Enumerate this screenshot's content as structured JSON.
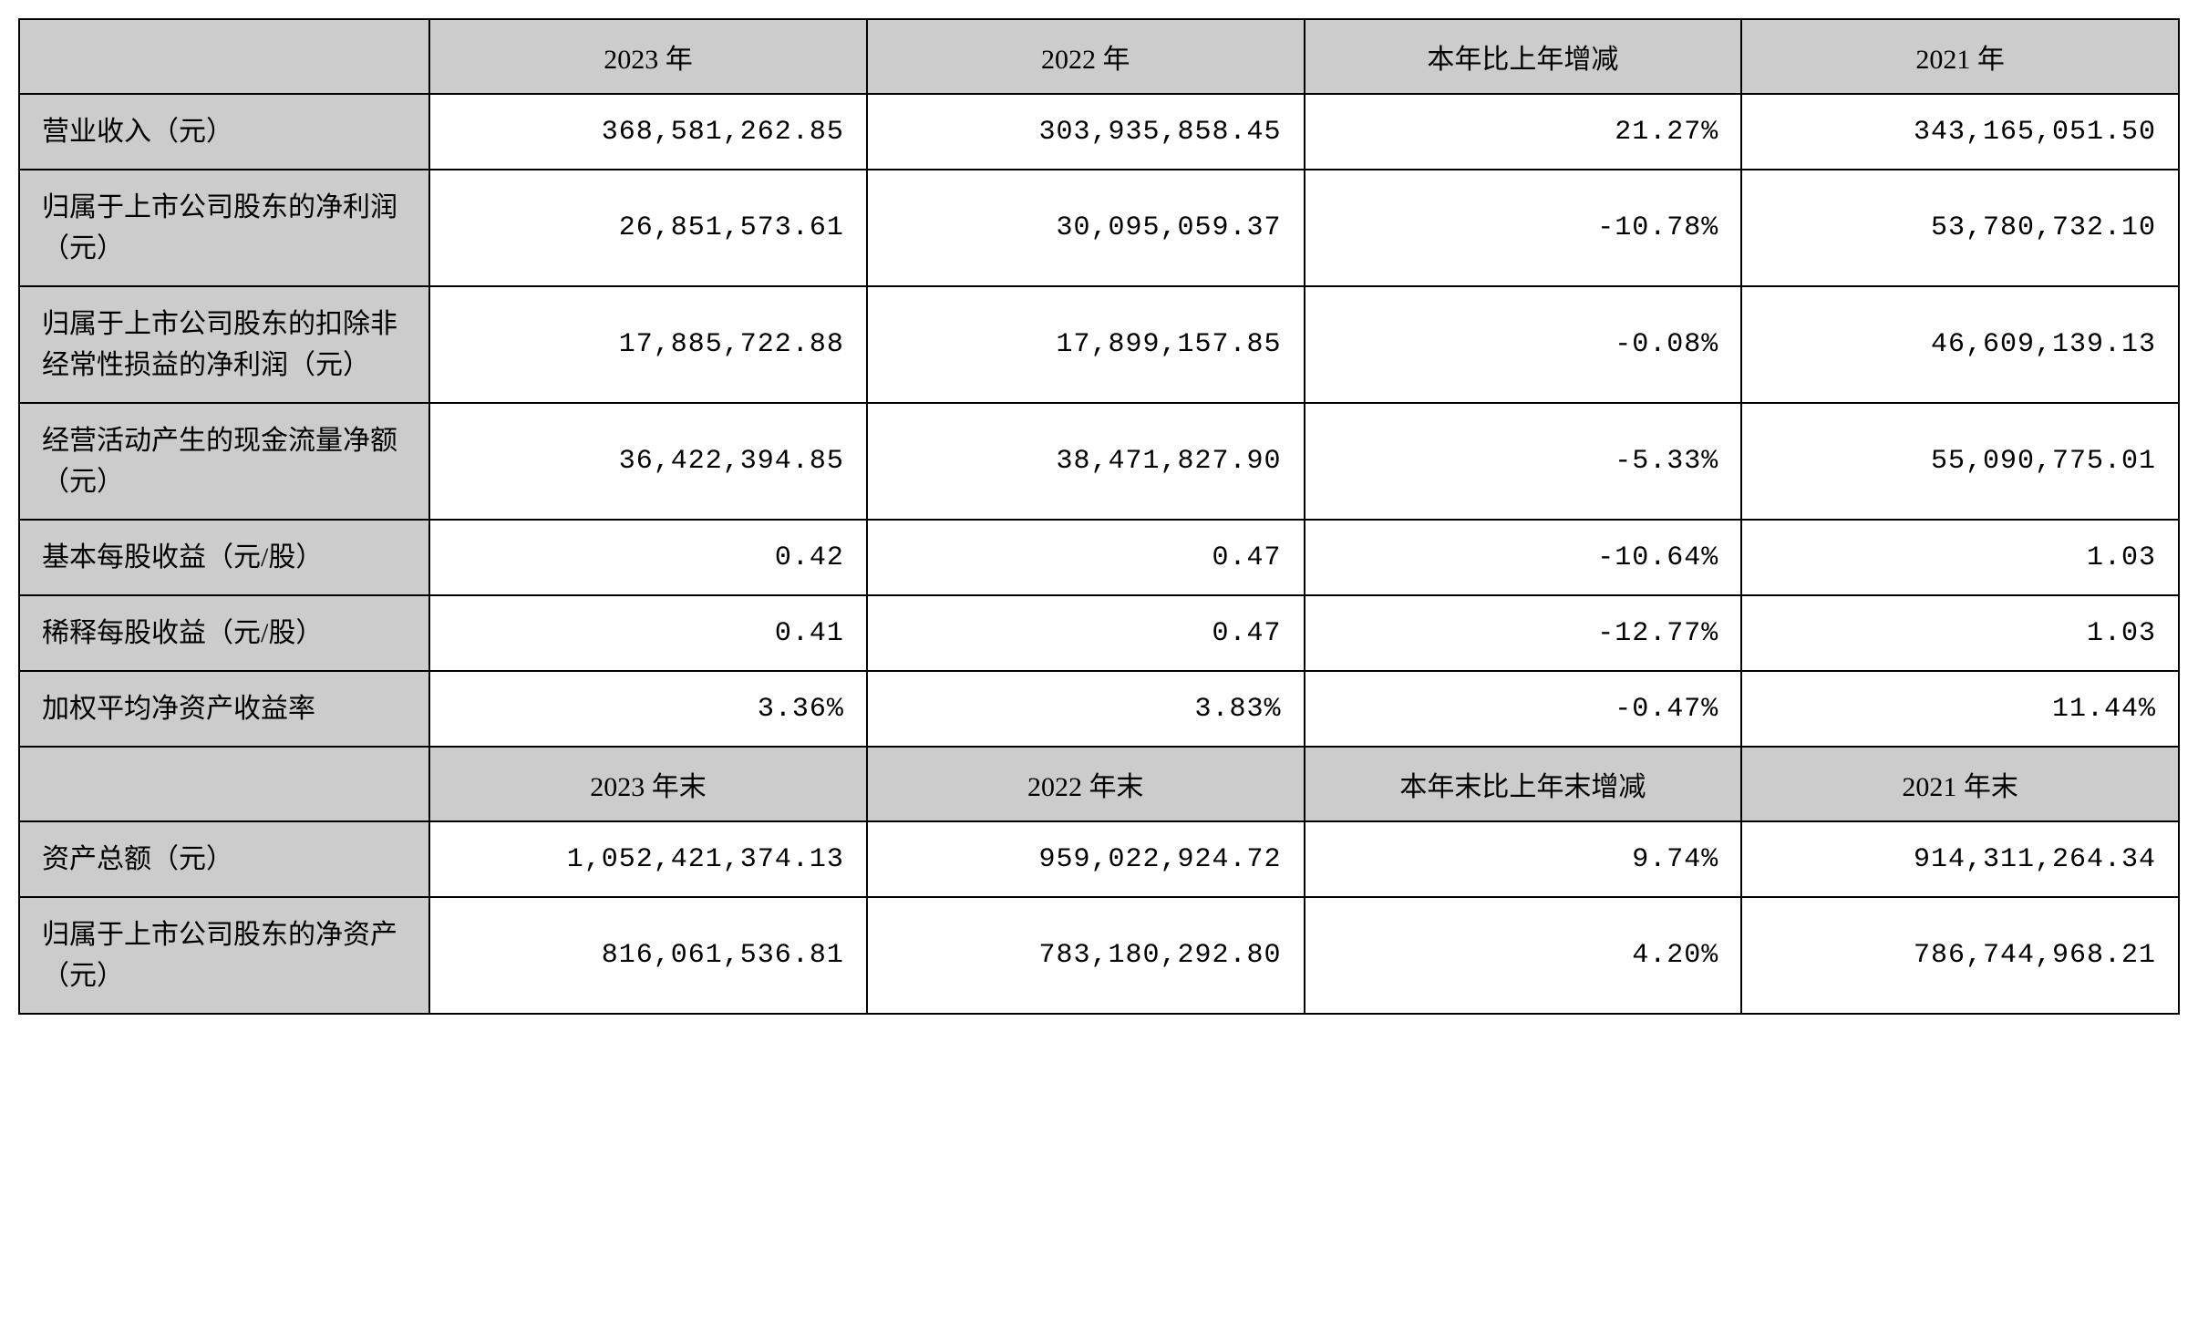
{
  "table": {
    "type": "table",
    "columns": [
      {
        "key": "label",
        "width_pct": 19,
        "align": "left",
        "bg": "#cccccc"
      },
      {
        "key": "y2023",
        "width_pct": 20.25,
        "align": "right",
        "bg": "#ffffff"
      },
      {
        "key": "y2022",
        "width_pct": 20.25,
        "align": "right",
        "bg": "#ffffff"
      },
      {
        "key": "change",
        "width_pct": 20.25,
        "align": "right",
        "bg": "#ffffff"
      },
      {
        "key": "y2021",
        "width_pct": 20.25,
        "align": "right",
        "bg": "#ffffff"
      }
    ],
    "header1": {
      "blank": "",
      "col_2023": "2023 年",
      "col_2022": "2022 年",
      "col_change": "本年比上年增减",
      "col_2021": "2021 年"
    },
    "rows1": [
      {
        "label": "营业收入（元）",
        "y2023": "368,581,262.85",
        "y2022": "303,935,858.45",
        "change": "21.27%",
        "y2021": "343,165,051.50"
      },
      {
        "label": "归属于上市公司股东的净利润（元）",
        "y2023": "26,851,573.61",
        "y2022": "30,095,059.37",
        "change": "-10.78%",
        "y2021": "53,780,732.10"
      },
      {
        "label": "归属于上市公司股东的扣除非经常性损益的净利润（元）",
        "y2023": "17,885,722.88",
        "y2022": "17,899,157.85",
        "change": "-0.08%",
        "y2021": "46,609,139.13"
      },
      {
        "label": "经营活动产生的现金流量净额（元）",
        "y2023": "36,422,394.85",
        "y2022": "38,471,827.90",
        "change": "-5.33%",
        "y2021": "55,090,775.01"
      },
      {
        "label": "基本每股收益（元/股）",
        "y2023": "0.42",
        "y2022": "0.47",
        "change": "-10.64%",
        "y2021": "1.03"
      },
      {
        "label": "稀释每股收益（元/股）",
        "y2023": "0.41",
        "y2022": "0.47",
        "change": "-12.77%",
        "y2021": "1.03"
      },
      {
        "label": "加权平均净资产收益率",
        "y2023": "3.36%",
        "y2022": "3.83%",
        "change": "-0.47%",
        "y2021": "11.44%"
      }
    ],
    "header2": {
      "blank": "",
      "col_2023": "2023 年末",
      "col_2022": "2022 年末",
      "col_change": "本年末比上年末增减",
      "col_2021": "2021 年末"
    },
    "rows2": [
      {
        "label": "资产总额（元）",
        "y2023": "1,052,421,374.13",
        "y2022": "959,022,924.72",
        "change": "9.74%",
        "y2021": "914,311,264.34"
      },
      {
        "label": "归属于上市公司股东的净资产（元）",
        "y2023": "816,061,536.81",
        "y2022": "783,180,292.80",
        "change": "4.20%",
        "y2021": "786,744,968.21"
      }
    ],
    "styling": {
      "border_color": "#000000",
      "border_width": 2,
      "header_bg": "#cccccc",
      "label_bg": "#cccccc",
      "data_bg": "#ffffff",
      "font_size": 30,
      "font_family_label": "SimSun",
      "font_family_data": "Courier New",
      "cell_padding": "18px 24px"
    }
  }
}
